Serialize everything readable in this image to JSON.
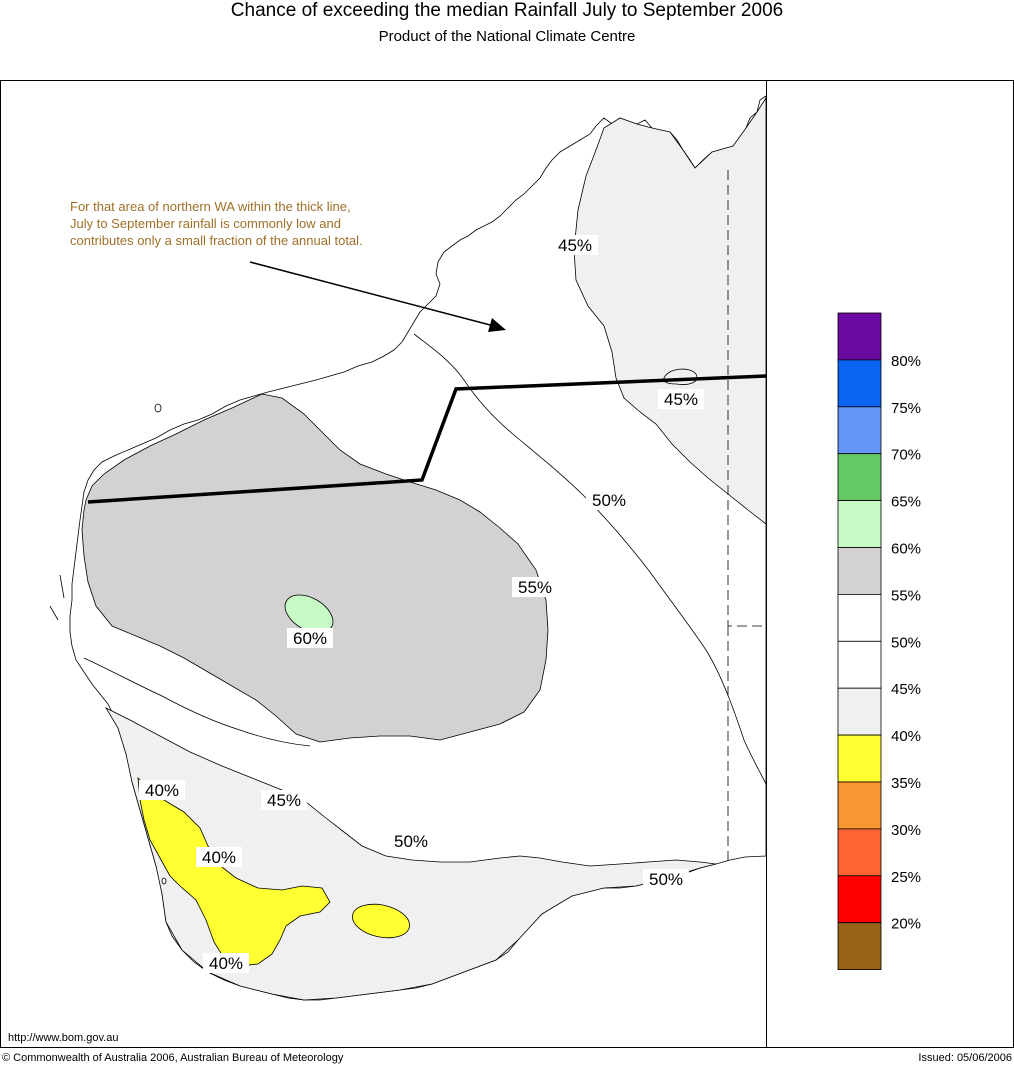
{
  "title": "Chance of exceeding the median Rainfall July to September 2006",
  "subtitle": "Product of the National Climate Centre",
  "annotation": {
    "lines": [
      "For that area of northern WA within the thick line,",
      "July to September rainfall is commonly low and",
      "contributes only a small fraction of the annual total."
    ],
    "color": "#a07028"
  },
  "contour_labels": {
    "l45_north": "45%",
    "l45_east": "45%",
    "l50_central": "50%",
    "l55": "55%",
    "l60": "60%",
    "l40_top": "40%",
    "l45_south": "45%",
    "l50_south": "50%",
    "l40_mid": "40%",
    "l50_east": "50%",
    "l40_bottom": "40%"
  },
  "legend": [
    {
      "color": "#6a0aa0",
      "label": "80%"
    },
    {
      "color": "#0a64f0",
      "label": "75%"
    },
    {
      "color": "#6496fa",
      "label": "70%"
    },
    {
      "color": "#64c864",
      "label": "65%"
    },
    {
      "color": "#c8fac8",
      "label": "60%"
    },
    {
      "color": "#d2d2d2",
      "label": "55%"
    },
    {
      "color": "#ffffff",
      "label": "50%"
    },
    {
      "color": "#ffffff",
      "label": "45%"
    },
    {
      "color": "#f0f0f0",
      "label": "40%"
    },
    {
      "color": "#ffff32",
      "label": "35%"
    },
    {
      "color": "#fa9632",
      "label": "30%"
    },
    {
      "color": "#ff6432",
      "label": "25%"
    },
    {
      "color": "#ff0000",
      "label": "20%"
    },
    {
      "color": "#966414",
      "label": ""
    }
  ],
  "footer": {
    "url": "http://www.bom.gov.au",
    "copyright": "© Commonwealth of Australia 2006, Australian Bureau of Meteorology",
    "issued": "Issued: 05/06/2006"
  }
}
